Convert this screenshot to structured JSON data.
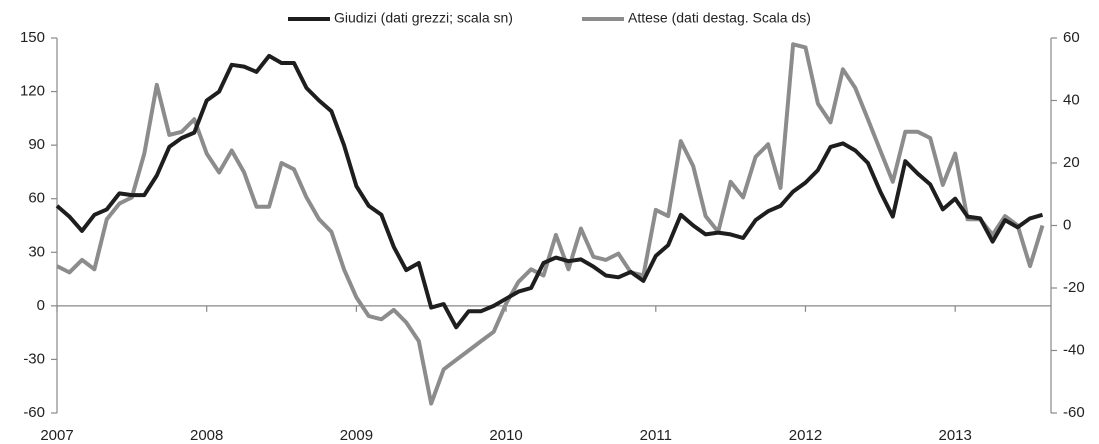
{
  "chart_data": {
    "type": "line",
    "x": [
      2007.0,
      2007.083,
      2007.167,
      2007.25,
      2007.333,
      2007.417,
      2007.5,
      2007.583,
      2007.667,
      2007.75,
      2007.833,
      2007.917,
      2008.0,
      2008.083,
      2008.167,
      2008.25,
      2008.333,
      2008.417,
      2008.5,
      2008.583,
      2008.667,
      2008.75,
      2008.833,
      2008.917,
      2009.0,
      2009.083,
      2009.167,
      2009.25,
      2009.333,
      2009.417,
      2009.5,
      2009.583,
      2009.667,
      2009.75,
      2009.833,
      2009.917,
      2010.0,
      2010.083,
      2010.167,
      2010.25,
      2010.333,
      2010.417,
      2010.5,
      2010.583,
      2010.667,
      2010.75,
      2010.833,
      2010.917,
      2011.0,
      2011.083,
      2011.167,
      2011.25,
      2011.333,
      2011.417,
      2011.5,
      2011.583,
      2011.667,
      2011.75,
      2011.833,
      2011.917,
      2012.0,
      2012.083,
      2012.167,
      2012.25,
      2012.333,
      2012.417,
      2012.5,
      2012.583,
      2012.667,
      2012.75,
      2012.833,
      2012.917,
      2013.0,
      2013.083,
      2013.167,
      2013.25,
      2013.333,
      2013.417,
      2013.5,
      2013.583
    ],
    "series": [
      {
        "name": "Giudizi (dati grezzi; scala sn)",
        "color": "#1e1e1e",
        "values": [
          56,
          50,
          42,
          51,
          54,
          63,
          62,
          62,
          73,
          89,
          94,
          97,
          115,
          120,
          135,
          134,
          131,
          140,
          136,
          136,
          122,
          115,
          109,
          90,
          67,
          56,
          51,
          33,
          20,
          24,
          -1,
          1,
          -12,
          -3,
          -3,
          0,
          4,
          8,
          10,
          24,
          27,
          25,
          26,
          22,
          17,
          16,
          19,
          14,
          28,
          34,
          51,
          45,
          40,
          41,
          40,
          38,
          48,
          53,
          56,
          64,
          69,
          76,
          89,
          91,
          87,
          80,
          64,
          50,
          81,
          74,
          68,
          54,
          60,
          50,
          49,
          36,
          48,
          44,
          49,
          51
        ]
      },
      {
        "name": "Attese (dati destag. Scala ds)",
        "color": "#8c8c8c",
        "axis": "y2",
        "values": [
          -13,
          -15,
          -11,
          -14,
          2,
          7,
          9,
          23,
          45,
          29,
          30,
          34,
          23,
          17,
          24,
          17,
          6,
          6,
          20,
          18,
          9,
          2,
          -2,
          -14,
          -23,
          -29,
          -30,
          -27,
          -31,
          -37,
          -57,
          -46,
          -43,
          -40,
          -37,
          -34,
          -25,
          -18,
          -14,
          -16,
          -3,
          -14,
          -1,
          -10,
          -11,
          -9,
          -15,
          -16,
          5,
          3,
          27,
          19,
          3,
          -2,
          14,
          9,
          22,
          26,
          12,
          58,
          57,
          39,
          33,
          50,
          44,
          34,
          24,
          14,
          30,
          30,
          28,
          13,
          23,
          2,
          2,
          -3,
          3,
          0,
          -13,
          0
        ]
      }
    ],
    "xlim": [
      2007,
      2013.64
    ],
    "xticks": [
      2007,
      2008,
      2009,
      2010,
      2011,
      2012,
      2013
    ],
    "ylim": [
      -60,
      150
    ],
    "yticks": [
      -60,
      -30,
      0,
      30,
      60,
      90,
      120,
      150
    ],
    "y2lim": [
      -60,
      60
    ],
    "y2ticks": [
      -60,
      -40,
      -20,
      0,
      20,
      40,
      60
    ],
    "grid": false
  }
}
